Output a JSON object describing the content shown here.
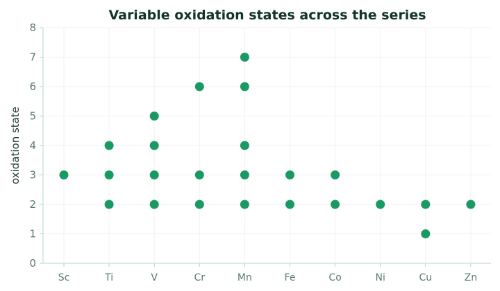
{
  "chart_data": {
    "type": "scatter",
    "title": "Variable oxidation states across the series",
    "xlabel": "",
    "ylabel": "oxidation state",
    "categories": [
      "Sc",
      "Ti",
      "V",
      "Cr",
      "Mn",
      "Fe",
      "Co",
      "Ni",
      "Cu",
      "Zn"
    ],
    "points": [
      {
        "x": "Sc",
        "y": 3
      },
      {
        "x": "Ti",
        "y": 2
      },
      {
        "x": "Ti",
        "y": 3
      },
      {
        "x": "Ti",
        "y": 4
      },
      {
        "x": "V",
        "y": 2
      },
      {
        "x": "V",
        "y": 3
      },
      {
        "x": "V",
        "y": 4
      },
      {
        "x": "V",
        "y": 5
      },
      {
        "x": "Cr",
        "y": 2
      },
      {
        "x": "Cr",
        "y": 3
      },
      {
        "x": "Cr",
        "y": 6
      },
      {
        "x": "Mn",
        "y": 2
      },
      {
        "x": "Mn",
        "y": 3
      },
      {
        "x": "Mn",
        "y": 4
      },
      {
        "x": "Mn",
        "y": 6
      },
      {
        "x": "Mn",
        "y": 7
      },
      {
        "x": "Fe",
        "y": 2
      },
      {
        "x": "Fe",
        "y": 3
      },
      {
        "x": "Co",
        "y": 2
      },
      {
        "x": "Co",
        "y": 3
      },
      {
        "x": "Ni",
        "y": 2
      },
      {
        "x": "Cu",
        "y": 1
      },
      {
        "x": "Cu",
        "y": 2
      },
      {
        "x": "Zn",
        "y": 2
      }
    ],
    "ylim": [
      0,
      8
    ],
    "yticks": [
      0,
      1,
      2,
      3,
      4,
      5,
      6,
      7,
      8
    ],
    "grid": true,
    "legend": "none",
    "colors": {
      "marker": "#1a9a63",
      "title": "#12352b",
      "tick": "#5b7a70",
      "axis": "#cfe3dc",
      "grid": "#eef3f1"
    }
  }
}
